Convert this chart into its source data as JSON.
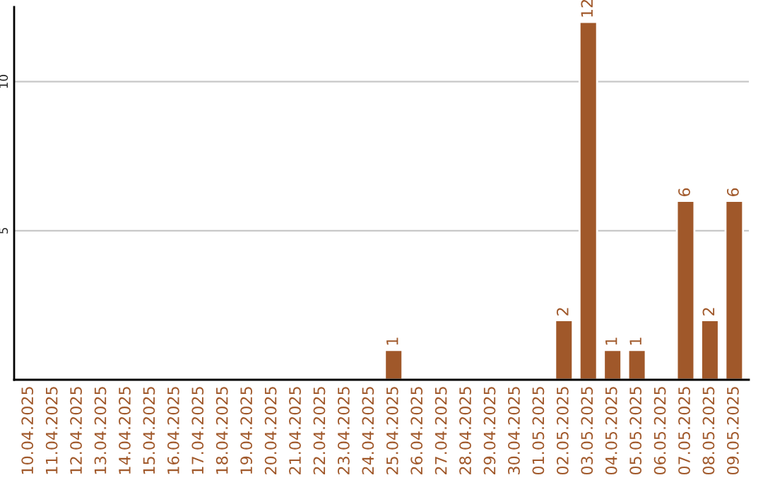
{
  "chart_data": {
    "type": "bar",
    "categories": [
      "10.04.2025",
      "11.04.2025",
      "12.04.2025",
      "13.04.2025",
      "14.04.2025",
      "15.04.2025",
      "16.04.2025",
      "17.04.2025",
      "18.04.2025",
      "19.04.2025",
      "20.04.2025",
      "21.04.2025",
      "22.04.2025",
      "23.04.2025",
      "24.04.2025",
      "25.04.2025",
      "26.04.2025",
      "27.04.2025",
      "28.04.2025",
      "29.04.2025",
      "30.04.2025",
      "01.05.2025",
      "02.05.2025",
      "03.05.2025",
      "04.05.2025",
      "05.05.2025",
      "06.05.2025",
      "07.05.2025",
      "08.05.2025",
      "09.05.2025"
    ],
    "values": [
      null,
      null,
      null,
      null,
      null,
      null,
      null,
      null,
      null,
      null,
      null,
      null,
      null,
      null,
      null,
      1,
      null,
      null,
      null,
      null,
      null,
      null,
      2,
      12,
      1,
      1,
      null,
      6,
      2,
      6
    ],
    "color": "#a0582a",
    "ylim": [
      0,
      12.5
    ],
    "yticks": [
      5,
      10
    ],
    "grid": "y",
    "data_labels": true
  }
}
